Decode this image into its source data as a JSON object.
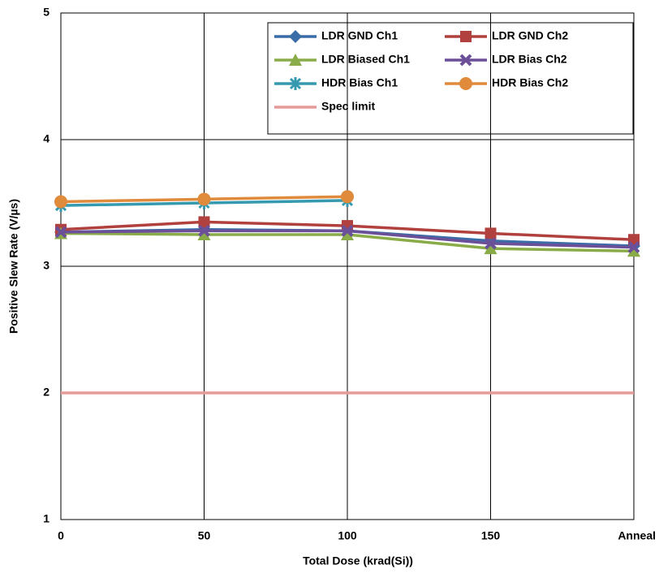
{
  "chart_data": {
    "type": "line",
    "x_label": "Total Dose (krad(Si))",
    "y_label": "Positive Slew Rate (V/µs)",
    "categories": [
      "0",
      "50",
      "100",
      "150",
      "Anneal"
    ],
    "ylim": [
      1,
      5
    ],
    "yticks": [
      1,
      2,
      3,
      4,
      5
    ],
    "grid": true,
    "legend": "upper right",
    "series": [
      {
        "name": "LDR GND Ch1",
        "color": "#3a6ca8",
        "marker": "diamond",
        "values": [
          3.27,
          3.29,
          3.28,
          3.2,
          3.16
        ]
      },
      {
        "name": "LDR GND Ch2",
        "color": "#b0413e",
        "marker": "square",
        "values": [
          3.29,
          3.35,
          3.32,
          3.26,
          3.21
        ]
      },
      {
        "name": "LDR Biased Ch1",
        "color": "#8aac48",
        "marker": "triangle",
        "values": [
          3.26,
          3.25,
          3.25,
          3.14,
          3.12
        ]
      },
      {
        "name": "LDR Bias Ch2",
        "color": "#6b4f98",
        "marker": "x",
        "values": [
          3.27,
          3.28,
          3.28,
          3.18,
          3.15
        ]
      },
      {
        "name": "HDR Bias Ch1",
        "color": "#3599b0",
        "marker": "star",
        "values": [
          3.48,
          3.5,
          3.52,
          null,
          null
        ]
      },
      {
        "name": "HDR Bias Ch2",
        "color": "#e08a3c",
        "marker": "circle",
        "values": [
          3.51,
          3.53,
          3.55,
          null,
          null
        ]
      },
      {
        "name": "Spec limit",
        "color": "#e59a9a",
        "values": [
          2,
          2,
          2,
          2,
          2
        ]
      }
    ]
  }
}
